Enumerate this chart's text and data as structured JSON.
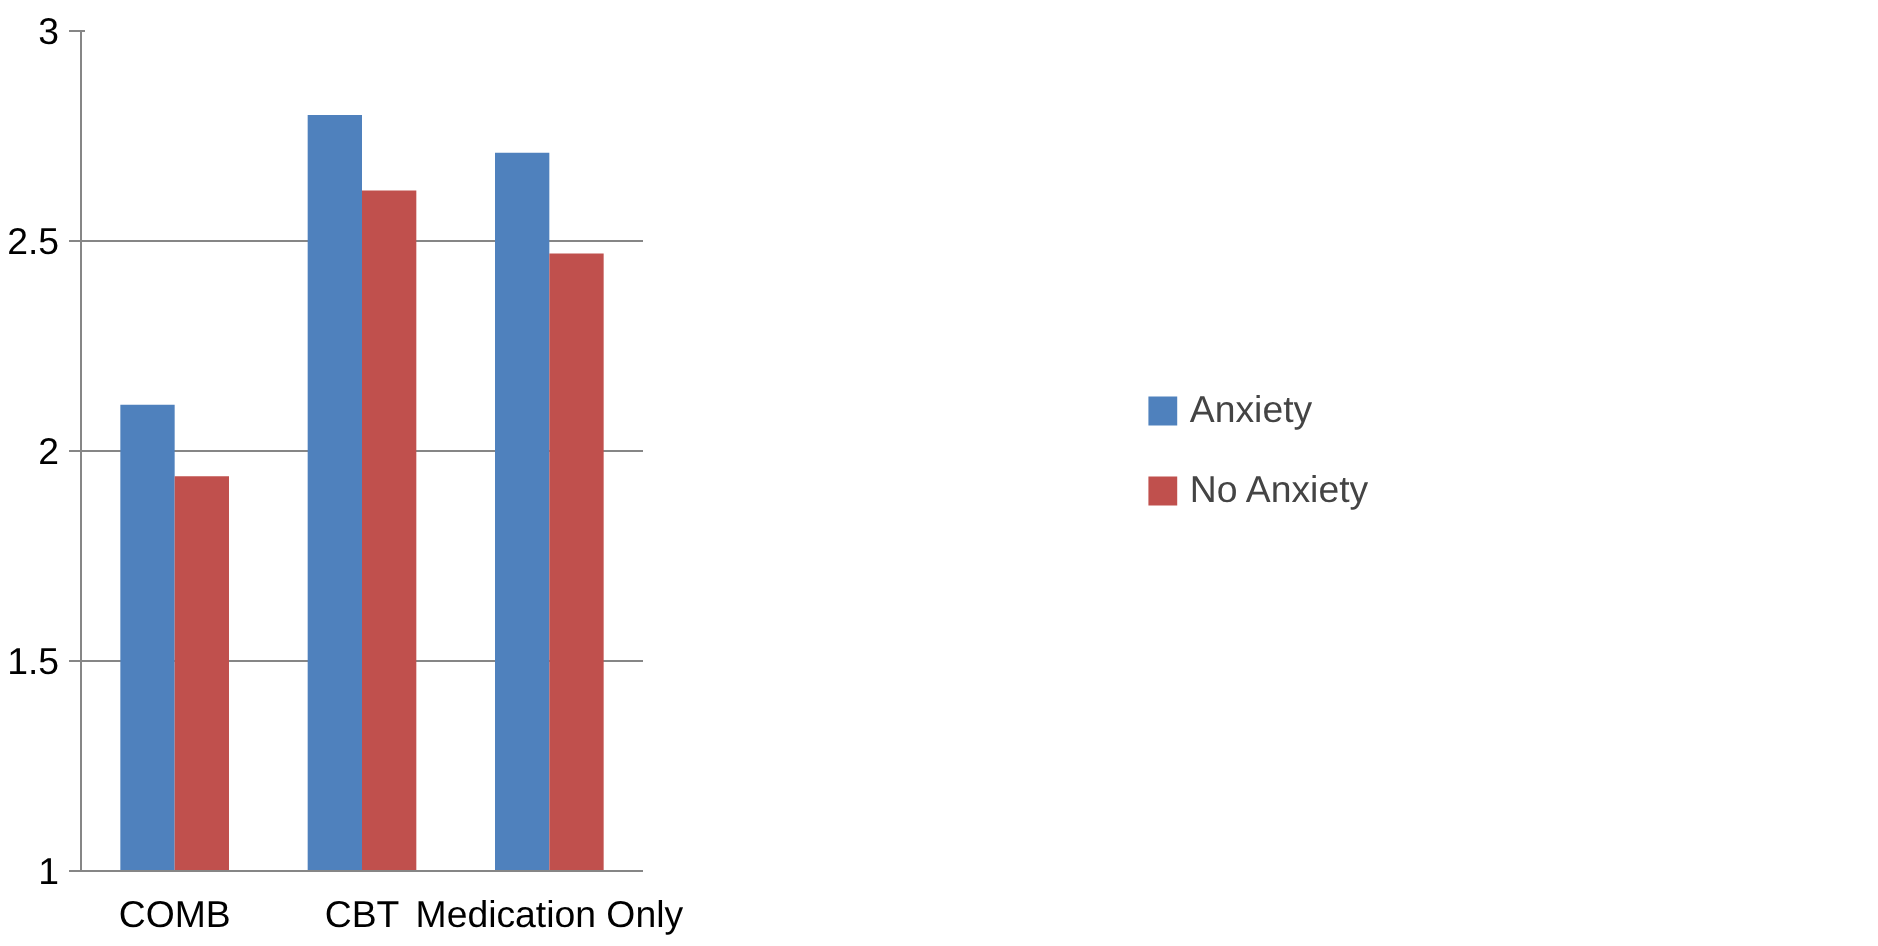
{
  "chart_data": {
    "type": "bar",
    "categories": [
      "COMB",
      "CBT",
      "Medication Only"
    ],
    "series": [
      {
        "name": "Anxiety",
        "color": "#4f81bd",
        "values": [
          2.11,
          2.8,
          2.71
        ]
      },
      {
        "name": "No Anxiety",
        "color": "#c0504d",
        "values": [
          1.94,
          2.62,
          2.47
        ]
      }
    ],
    "ylim": [
      1,
      3
    ],
    "yticks": [
      1,
      1.5,
      2,
      2.5,
      3
    ],
    "grid": "y",
    "legend": "right"
  }
}
